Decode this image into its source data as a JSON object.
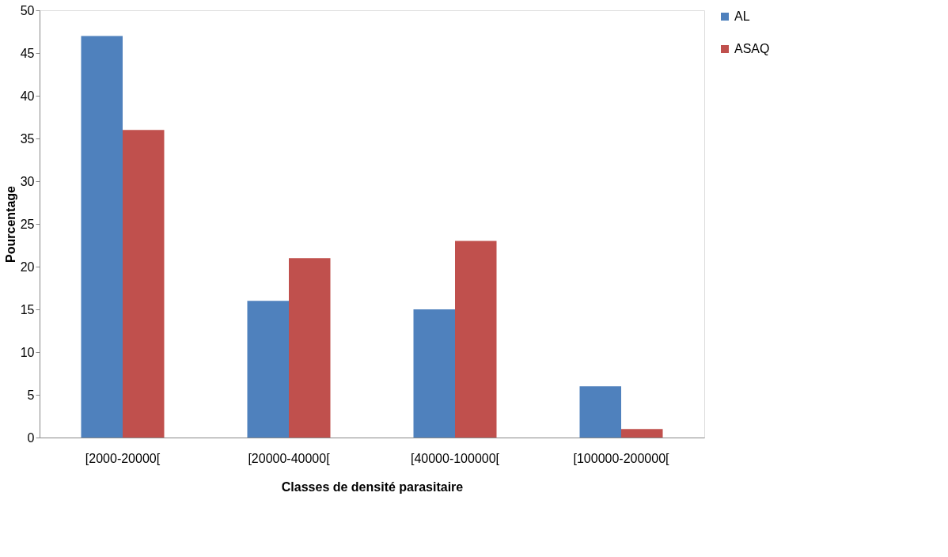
{
  "chart_data": {
    "type": "bar",
    "xlabel": "Classes de densité parasitaire",
    "ylabel": "Pourcentage",
    "categories": [
      "[2000-20000[",
      "[20000-40000[",
      "[40000-100000[",
      "[100000-200000["
    ],
    "series": [
      {
        "name": "AL",
        "color": "#4f81bd",
        "values": [
          47,
          16,
          15,
          6
        ]
      },
      {
        "name": "ASAQ",
        "color": "#c0504d",
        "values": [
          36,
          21,
          23,
          1
        ]
      }
    ],
    "ylim": [
      0,
      50
    ],
    "yticks": [
      0,
      5,
      10,
      15,
      20,
      25,
      30,
      35,
      40,
      45,
      50
    ],
    "grid": false,
    "legend": "right"
  }
}
